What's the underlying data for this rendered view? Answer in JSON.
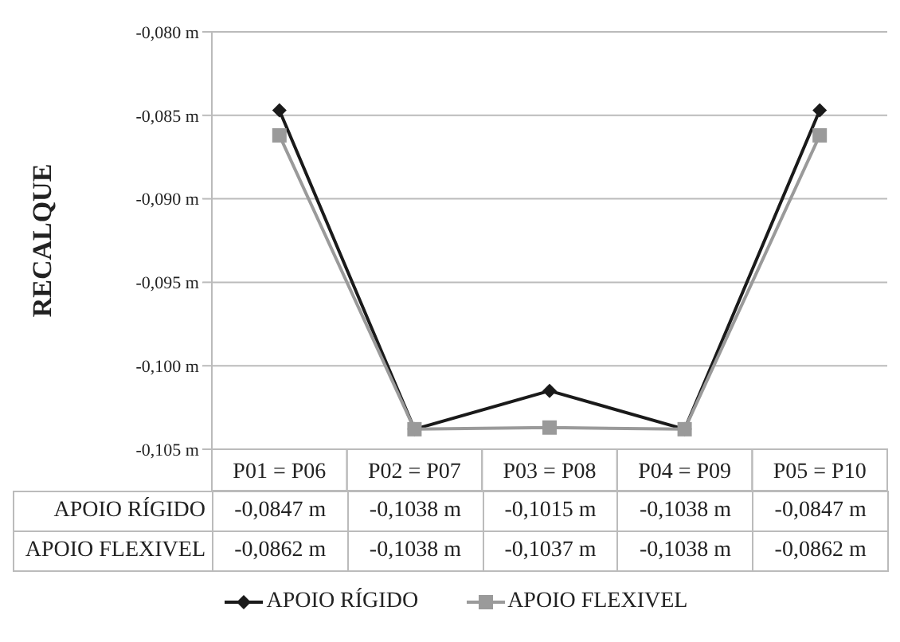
{
  "chart_data": {
    "type": "line",
    "ylabel": "RECALQUE",
    "categories": [
      "P01 = P06",
      "P02 = P07",
      "P03 = P08",
      "P04 = P09",
      "P05 = P10"
    ],
    "series": [
      {
        "name": "APOIO RÍGIDO",
        "color": "#1a1a1a",
        "marker": "diamond",
        "values": [
          -0.0847,
          -0.1038,
          -0.1015,
          -0.1038,
          -0.0847
        ],
        "value_labels": [
          "-0,0847 m",
          "-0,1038 m",
          "-0,1015 m",
          "-0,1038 m",
          "-0,0847 m"
        ]
      },
      {
        "name": "APOIO FLEXIVEL",
        "color": "#9a9a9a",
        "marker": "square",
        "values": [
          -0.0862,
          -0.1038,
          -0.1037,
          -0.1038,
          -0.0862
        ],
        "value_labels": [
          "-0,0862 m",
          "-0,1038 m",
          "-0,1037 m",
          "-0,1038 m",
          "-0,0862 m"
        ]
      }
    ],
    "ylim": [
      -0.105,
      -0.08
    ],
    "yticks": [
      {
        "value": -0.105,
        "label": "-0,105 m"
      },
      {
        "value": -0.1,
        "label": "-0,100 m"
      },
      {
        "value": -0.095,
        "label": "-0,095 m"
      },
      {
        "value": -0.09,
        "label": "-0,090 m"
      },
      {
        "value": -0.085,
        "label": "-0,085 m"
      },
      {
        "value": -0.08,
        "label": "-0,080 m"
      }
    ],
    "grid": "y",
    "legend": "bottom",
    "line_style": "solid"
  }
}
